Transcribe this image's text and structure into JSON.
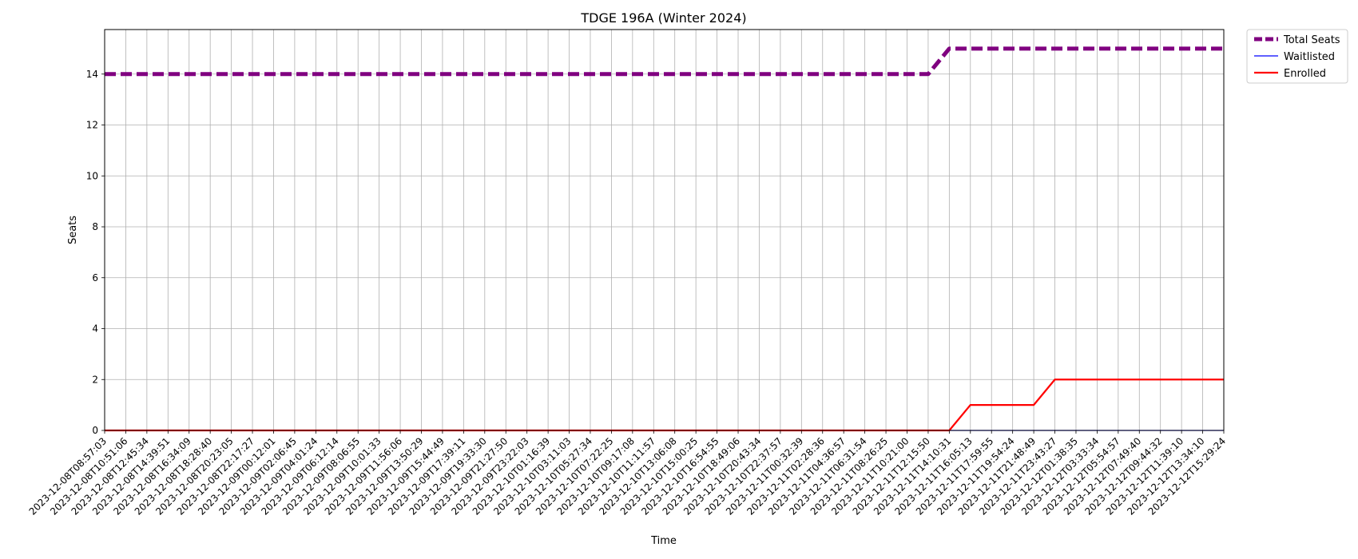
{
  "chart_data": {
    "type": "line",
    "title": "TDGE 196A (Winter 2024)",
    "xlabel": "Time",
    "ylabel": "Seats",
    "ylim": [
      0,
      15.75
    ],
    "yticks": [
      "0",
      "2",
      "4",
      "6",
      "8",
      "10",
      "12",
      "14"
    ],
    "grid": true,
    "legend_position": "outside-top-right",
    "x": [
      "2023-12-08T08:57:03",
      "2023-12-08T10:51:06",
      "2023-12-08T12:45:34",
      "2023-12-08T14:39:51",
      "2023-12-08T16:34:09",
      "2023-12-08T18:28:40",
      "2023-12-08T20:23:05",
      "2023-12-08T22:17:27",
      "2023-12-09T00:12:01",
      "2023-12-09T02:06:45",
      "2023-12-09T04:01:24",
      "2023-12-09T06:12:14",
      "2023-12-09T08:06:55",
      "2023-12-09T10:01:33",
      "2023-12-09T11:56:06",
      "2023-12-09T13:50:29",
      "2023-12-09T15:44:49",
      "2023-12-09T17:39:11",
      "2023-12-09T19:33:30",
      "2023-12-09T21:27:50",
      "2023-12-09T23:22:03",
      "2023-12-10T01:16:39",
      "2023-12-10T03:11:03",
      "2023-12-10T05:27:34",
      "2023-12-10T07:22:25",
      "2023-12-10T09:17:08",
      "2023-12-10T11:11:57",
      "2023-12-10T13:06:08",
      "2023-12-10T15:00:25",
      "2023-12-10T16:54:55",
      "2023-12-10T18:49:06",
      "2023-12-10T20:43:34",
      "2023-12-10T22:37:57",
      "2023-12-11T00:32:39",
      "2023-12-11T02:28:36",
      "2023-12-11T04:36:57",
      "2023-12-11T06:31:54",
      "2023-12-11T08:26:25",
      "2023-12-11T10:21:00",
      "2023-12-11T12:15:50",
      "2023-12-11T14:10:31",
      "2023-12-11T16:05:13",
      "2023-12-11T17:59:55",
      "2023-12-11T19:54:24",
      "2023-12-11T21:48:49",
      "2023-12-11T23:43:27",
      "2023-12-12T01:38:35",
      "2023-12-12T03:33:34",
      "2023-12-12T05:54:57",
      "2023-12-12T07:49:40",
      "2023-12-12T09:44:32",
      "2023-12-12T11:39:10",
      "2023-12-12T13:34:10",
      "2023-12-12T15:29:24"
    ],
    "series": [
      {
        "name": "Total Seats",
        "color": "#800080",
        "style": "dashed",
        "values": [
          14,
          14,
          14,
          14,
          14,
          14,
          14,
          14,
          14,
          14,
          14,
          14,
          14,
          14,
          14,
          14,
          14,
          14,
          14,
          14,
          14,
          14,
          14,
          14,
          14,
          14,
          14,
          14,
          14,
          14,
          14,
          14,
          14,
          14,
          14,
          14,
          14,
          14,
          14,
          14,
          15,
          15,
          15,
          15,
          15,
          15,
          15,
          15,
          15,
          15,
          15,
          15,
          15,
          15
        ]
      },
      {
        "name": "Waitlisted",
        "color": "#0000ff",
        "style": "solid",
        "values": [
          0,
          0,
          0,
          0,
          0,
          0,
          0,
          0,
          0,
          0,
          0,
          0,
          0,
          0,
          0,
          0,
          0,
          0,
          0,
          0,
          0,
          0,
          0,
          0,
          0,
          0,
          0,
          0,
          0,
          0,
          0,
          0,
          0,
          0,
          0,
          0,
          0,
          0,
          0,
          0,
          0,
          0,
          0,
          0,
          0,
          0,
          0,
          0,
          0,
          0,
          0,
          0,
          0,
          0
        ]
      },
      {
        "name": "Enrolled",
        "color": "#ff0000",
        "style": "solid",
        "values": [
          0,
          0,
          0,
          0,
          0,
          0,
          0,
          0,
          0,
          0,
          0,
          0,
          0,
          0,
          0,
          0,
          0,
          0,
          0,
          0,
          0,
          0,
          0,
          0,
          0,
          0,
          0,
          0,
          0,
          0,
          0,
          0,
          0,
          0,
          0,
          0,
          0,
          0,
          0,
          0,
          0,
          1,
          1,
          1,
          1,
          2,
          2,
          2,
          2,
          2,
          2,
          2,
          2,
          2
        ]
      }
    ]
  }
}
